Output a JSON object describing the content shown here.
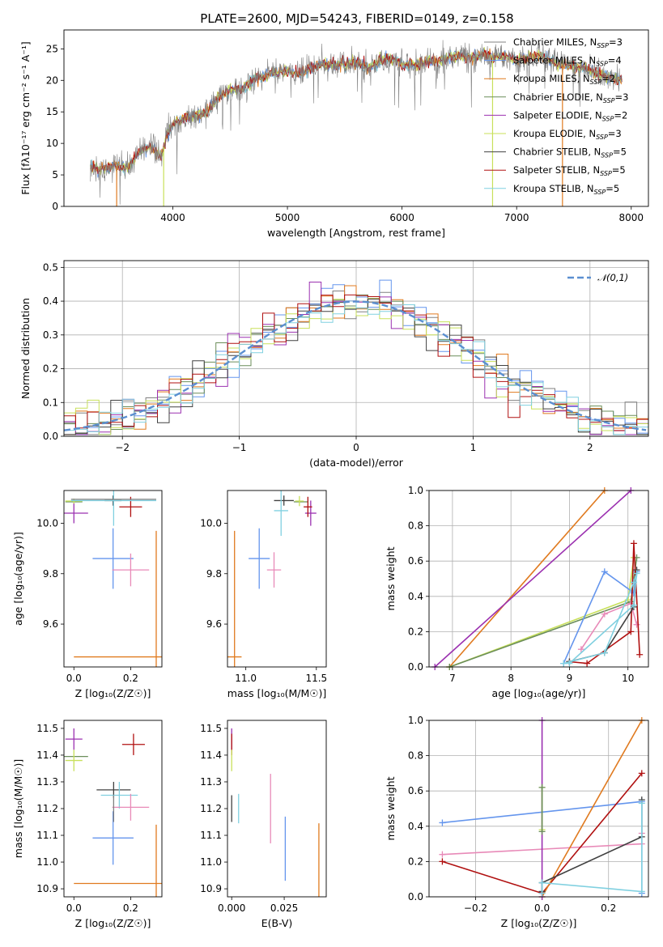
{
  "figure_title": "PLATE=2600, MJD=54243, FIBERID=0149, z=0.158",
  "colors": {
    "chabrier_miles": "#808080",
    "salpeter_miles": "#6495ED",
    "kroupa_miles": "#E07A1F",
    "chabrier_elodie": "#6B8E5A",
    "salpeter_elodie": "#9B30B0",
    "kroupa_elodie": "#C8E05A",
    "chabrier_stelib": "#404040",
    "salpeter_stelib": "#B01010",
    "kroupa_stelib": "#80D0E0",
    "pink": "#E88AB8",
    "gaussian": "#5B8FD0"
  },
  "chart_data": [
    {
      "type": "line",
      "id": "spectrum",
      "xlabel": "wavelength [Angstrom, rest frame]",
      "ylabel": "Flux [fλ10⁻¹⁷ erg cm⁻² s⁻¹ A⁻¹]",
      "xlim": [
        3050,
        8150
      ],
      "ylim": [
        0,
        28
      ],
      "xticks": [
        4000,
        5000,
        6000,
        7000,
        8000
      ],
      "yticks": [
        0,
        5,
        10,
        15,
        20,
        25
      ],
      "grid": false,
      "legend_position": "right",
      "legend": [
        "Chabrier MILES, N_SSP=3",
        "Salpeter MILES, N_SSP=4",
        "Kroupa MILES, N_SSP=2",
        "Chabrier ELODIE, N_SSP=3",
        "Salpeter ELODIE, N_SSP=2",
        "Kroupa ELODIE, N_SSP=3",
        "Chabrier STELIB, N_SSP=5",
        "Salpeter STELIB, N_SSP=5",
        "Kroupa STELIB, N_SSP=5"
      ],
      "continuum_knots": {
        "x": [
          3280,
          3400,
          3500,
          3600,
          3700,
          3800,
          3900,
          3950,
          4000,
          4100,
          4200,
          4300,
          4400,
          4500,
          4600,
          4700,
          4800,
          4900,
          5000,
          5100,
          5200,
          5300,
          5400,
          5500,
          5600,
          5700,
          5800,
          5900,
          6000,
          6100,
          6200,
          6300,
          6400,
          6500,
          6600,
          6700,
          6800,
          6900,
          7000,
          7100,
          7200,
          7300,
          7400,
          7500,
          7600,
          7700,
          7800,
          7920
        ],
        "y": [
          6.2,
          6.0,
          6.5,
          6.0,
          8.5,
          9.5,
          8.0,
          11.5,
          13.0,
          14.0,
          14.5,
          15.0,
          17.5,
          18.5,
          18.5,
          20.0,
          20.5,
          21.5,
          21.5,
          21.0,
          22.0,
          22.5,
          22.5,
          22.5,
          23.0,
          22.0,
          23.0,
          23.5,
          22.5,
          22.5,
          23.0,
          23.0,
          23.5,
          24.0,
          23.5,
          24.0,
          23.5,
          24.0,
          23.0,
          23.5,
          24.0,
          23.0,
          22.5,
          22.0,
          22.0,
          21.0,
          20.5,
          20.0
        ]
      },
      "dropouts": [
        {
          "x": 3510,
          "color": "#E07A1F"
        },
        {
          "x": 3920,
          "color": "#C8E05A"
        },
        {
          "x": 6790,
          "color": "#C8E05A"
        },
        {
          "x": 7400,
          "color": "#E07A1F"
        }
      ]
    },
    {
      "type": "line",
      "id": "residual-histogram",
      "xlabel": "(data-model)/error",
      "ylabel": "Normed distribution",
      "xlim": [
        -2.5,
        2.5
      ],
      "ylim": [
        0,
        0.52
      ],
      "xticks": [
        -2,
        -1,
        0,
        1,
        2
      ],
      "yticks": [
        0.0,
        0.1,
        0.2,
        0.3,
        0.4,
        0.5
      ],
      "grid": true,
      "legend_position": "top-right",
      "legend": [
        "𝒩(0,1)"
      ],
      "bin_width": 0.1
    },
    {
      "type": "scatter",
      "id": "age-vs-Z",
      "xlabel": "Z [log₁₀(Z/Z☉)]",
      "ylabel": "age  [log₁₀(age/yr)]",
      "xlim": [
        -0.035,
        0.31
      ],
      "ylim": [
        9.43,
        10.13
      ],
      "xticks": [
        0.0,
        0.2
      ],
      "yticks": [
        9.6,
        9.8,
        10.0
      ],
      "points": [
        {
          "x": 0.138,
          "y": 9.86,
          "ex": 0.072,
          "ey": 0.12,
          "color": "#6495ED"
        },
        {
          "x": 0.29,
          "y": 9.47,
          "ex": 0.29,
          "ey": 0.5,
          "color": "#E07A1F"
        },
        {
          "x": 0.0,
          "y": 10.085,
          "ex": 0.03,
          "ey": 0.0,
          "color": "#6B8E5A"
        },
        {
          "x": 0.0,
          "y": 10.04,
          "ex": 0.05,
          "ey": 0.04,
          "color": "#9B30B0"
        },
        {
          "x": 0.0,
          "y": 10.088,
          "ex": 0.03,
          "ey": 0.01,
          "color": "#C8E05A"
        },
        {
          "x": 0.138,
          "y": 10.09,
          "ex": 0.03,
          "ey": 0.02,
          "color": "#404040"
        },
        {
          "x": 0.2,
          "y": 10.065,
          "ex": 0.04,
          "ey": 0.04,
          "color": "#B01010"
        },
        {
          "x": 0.14,
          "y": 10.09,
          "ex": 0.15,
          "ey": 0.1,
          "color": "#80D0E0"
        },
        {
          "x": 0.2,
          "y": 9.815,
          "ex": 0.065,
          "ey": 0.065,
          "color": "#E88AB8"
        },
        {
          "x": 0.14,
          "y": 10.095,
          "ex": 0.15,
          "ey": 0.0,
          "color": "#808080"
        }
      ]
    },
    {
      "type": "scatter",
      "id": "age-vs-mass",
      "xlabel": "mass [log₁₀(M/M☉)]",
      "ylabel": "",
      "xlim": [
        10.87,
        11.57
      ],
      "ylim": [
        9.43,
        10.13
      ],
      "xticks": [
        11.0,
        11.5
      ],
      "yticks": [
        9.6,
        9.8,
        10.0
      ],
      "points": [
        {
          "x": 11.095,
          "y": 9.86,
          "ex": 0.075,
          "ey": 0.12,
          "color": "#6495ED"
        },
        {
          "x": 10.92,
          "y": 9.47,
          "ex": 0.05,
          "ey": 0.5,
          "color": "#E07A1F"
        },
        {
          "x": 11.39,
          "y": 10.085,
          "ex": 0.05,
          "ey": 0.0,
          "color": "#6B8E5A"
        },
        {
          "x": 11.46,
          "y": 10.04,
          "ex": 0.04,
          "ey": 0.05,
          "color": "#9B30B0"
        },
        {
          "x": 11.38,
          "y": 10.088,
          "ex": 0.03,
          "ey": 0.02,
          "color": "#C8E05A"
        },
        {
          "x": 11.27,
          "y": 10.09,
          "ex": 0.07,
          "ey": 0.02,
          "color": "#404040"
        },
        {
          "x": 11.44,
          "y": 10.065,
          "ex": 0.03,
          "ey": 0.04,
          "color": "#B01010"
        },
        {
          "x": 11.25,
          "y": 10.05,
          "ex": 0.05,
          "ey": 0.1,
          "color": "#80D0E0"
        },
        {
          "x": 11.2,
          "y": 9.815,
          "ex": 0.05,
          "ey": 0.07,
          "color": "#E88AB8"
        }
      ]
    },
    {
      "type": "line",
      "id": "massweight-vs-age",
      "xlabel": "age  [log₁₀(age/yr)]",
      "ylabel": "mass weight",
      "xlim": [
        6.6,
        10.35
      ],
      "ylim": [
        0,
        1.0
      ],
      "xticks": [
        7,
        8,
        9,
        10
      ],
      "yticks": [
        0.0,
        0.2,
        0.4,
        0.6,
        0.8,
        1.0
      ],
      "grid": true,
      "series": [
        {
          "color": "#E07A1F",
          "x": [
            6.95,
            9.6
          ],
          "y": [
            0.0,
            1.0
          ]
        },
        {
          "color": "#9B30B0",
          "x": [
            6.7,
            10.05
          ],
          "y": [
            0.0,
            1.0
          ]
        },
        {
          "color": "#C8E05A",
          "x": [
            6.95,
            10.0,
            10.1
          ],
          "y": [
            0.0,
            0.38,
            0.62
          ]
        },
        {
          "color": "#6B8E5A",
          "x": [
            6.95,
            10.05,
            10.15
          ],
          "y": [
            0.0,
            0.37,
            0.62
          ]
        },
        {
          "color": "#6495ED",
          "x": [
            8.9,
            9.6,
            10.1,
            10.15,
            10.1
          ],
          "y": [
            0.02,
            0.54,
            0.42,
            0.54,
            0.42
          ]
        },
        {
          "color": "#E88AB8",
          "x": [
            9.2,
            9.6,
            10.05,
            10.15
          ],
          "y": [
            0.1,
            0.3,
            0.36,
            0.24
          ]
        },
        {
          "color": "#B01010",
          "x": [
            9.0,
            9.3,
            10.05,
            10.1,
            10.2
          ],
          "y": [
            0.03,
            0.02,
            0.2,
            0.7,
            0.07
          ]
        },
        {
          "color": "#404040",
          "x": [
            9.0,
            9.6,
            10.1,
            10.15
          ],
          "y": [
            0.03,
            0.08,
            0.34,
            0.55
          ]
        },
        {
          "color": "#80D0E0",
          "x": [
            8.9,
            9.6,
            10.1,
            10.15,
            10.1,
            9.0
          ],
          "y": [
            0.02,
            0.08,
            0.48,
            0.53,
            0.35,
            0.02
          ]
        }
      ]
    },
    {
      "type": "scatter",
      "id": "mass-vs-Z",
      "xlabel": "Z [log₁₀(Z/Z☉)]",
      "ylabel": "mass [log₁₀(M/M☉)]",
      "xlim": [
        -0.035,
        0.31
      ],
      "ylim": [
        10.87,
        11.53
      ],
      "xticks": [
        0.0,
        0.2
      ],
      "yticks": [
        10.9,
        11.0,
        11.1,
        11.2,
        11.3,
        11.4,
        11.5
      ],
      "points": [
        {
          "x": 0.138,
          "y": 11.09,
          "ex": 0.072,
          "ey": 0.1,
          "color": "#6495ED"
        },
        {
          "x": 0.29,
          "y": 10.92,
          "ex": 0.29,
          "ey": 0.22,
          "color": "#E07A1F"
        },
        {
          "x": 0.0,
          "y": 11.395,
          "ex": 0.05,
          "ey": 0.0,
          "color": "#6B8E5A"
        },
        {
          "x": 0.0,
          "y": 11.46,
          "ex": 0.03,
          "ey": 0.04,
          "color": "#9B30B0"
        },
        {
          "x": 0.0,
          "y": 11.38,
          "ex": 0.03,
          "ey": 0.04,
          "color": "#C8E05A"
        },
        {
          "x": 0.14,
          "y": 11.27,
          "ex": 0.06,
          "ey": 0.03,
          "color": "#404040"
        },
        {
          "x": 0.21,
          "y": 11.44,
          "ex": 0.04,
          "ey": 0.04,
          "color": "#B01010"
        },
        {
          "x": 0.16,
          "y": 11.25,
          "ex": 0.065,
          "ey": 0.05,
          "color": "#80D0E0"
        },
        {
          "x": 0.2,
          "y": 11.205,
          "ex": 0.065,
          "ey": 0.05,
          "color": "#E88AB8"
        },
        {
          "x": 0.14,
          "y": 11.2,
          "ex": 0.0,
          "ey": 0.05,
          "color": "#808080"
        }
      ]
    },
    {
      "type": "scatter",
      "id": "mass-vs-ebv",
      "xlabel": "E(B-V)",
      "ylabel": "",
      "xlim": [
        -0.002,
        0.045
      ],
      "ylim": [
        10.87,
        11.53
      ],
      "xticks": [
        0.0,
        0.025
      ],
      "yticks": [
        10.9,
        11.0,
        11.1,
        11.2,
        11.3,
        11.4,
        11.5
      ],
      "points": [
        {
          "x": 0.0,
          "y": 11.2,
          "ex": 0.0,
          "ey": 0.05,
          "color": "#404040"
        },
        {
          "x": 0.0,
          "y": 11.46,
          "ex": 0.0,
          "ey": 0.04,
          "color": "#9B30B0"
        },
        {
          "x": 0.0,
          "y": 11.44,
          "ex": 0.0,
          "ey": 0.04,
          "color": "#B01010"
        },
        {
          "x": 0.0,
          "y": 11.38,
          "ex": 0.0,
          "ey": 0.04,
          "color": "#C8E05A"
        },
        {
          "x": 0.0033,
          "y": 11.2,
          "ex": 0.0,
          "ey": 0.055,
          "color": "#80D0E0"
        },
        {
          "x": 0.0185,
          "y": 11.2,
          "ex": 0.0,
          "ey": 0.13,
          "color": "#E88AB8"
        },
        {
          "x": 0.0255,
          "y": 11.05,
          "ex": 0.0,
          "ey": 0.12,
          "color": "#6495ED"
        },
        {
          "x": 0.0415,
          "y": 10.98,
          "ex": 0.0,
          "ey": 0.165,
          "color": "#E07A1F"
        }
      ]
    },
    {
      "type": "line",
      "id": "massweight-vs-Z",
      "xlabel": "Z [log₁₀(Z/Z☉)]",
      "ylabel": "mass weight",
      "xlim": [
        -0.34,
        0.32
      ],
      "ylim": [
        0,
        1.0
      ],
      "xticks": [
        -0.2,
        0.0,
        0.2
      ],
      "yticks": [
        0.0,
        0.2,
        0.4,
        0.6,
        0.8,
        1.0
      ],
      "grid": true,
      "series": [
        {
          "color": "#6495ED",
          "x": [
            -0.3,
            0.3,
            0.3
          ],
          "y": [
            0.42,
            0.54,
            0.02
          ]
        },
        {
          "color": "#E88AB8",
          "x": [
            -0.3,
            0.3,
            0.3
          ],
          "y": [
            0.24,
            0.3,
            0.36
          ]
        },
        {
          "color": "#B01010",
          "x": [
            -0.3,
            0.0,
            0.3
          ],
          "y": [
            0.2,
            0.02,
            0.7
          ]
        },
        {
          "color": "#E07A1F",
          "x": [
            0.0,
            0.3
          ],
          "y": [
            0.0,
            1.0
          ]
        },
        {
          "color": "#9B30B0",
          "x": [
            0.0,
            0.0
          ],
          "y": [
            0.0,
            1.0
          ]
        },
        {
          "color": "#C8E05A",
          "x": [
            0.0,
            0.0
          ],
          "y": [
            0.38,
            0.62
          ]
        },
        {
          "color": "#6B8E5A",
          "x": [
            0.0,
            0.0
          ],
          "y": [
            0.37,
            0.62
          ]
        },
        {
          "color": "#404040",
          "x": [
            0.0,
            0.0,
            0.3,
            0.3
          ],
          "y": [
            0.03,
            0.08,
            0.34,
            0.55
          ]
        },
        {
          "color": "#80D0E0",
          "x": [
            0.0,
            0.0,
            0.3,
            0.3
          ],
          "y": [
            0.02,
            0.08,
            0.03,
            0.53
          ]
        }
      ]
    }
  ]
}
